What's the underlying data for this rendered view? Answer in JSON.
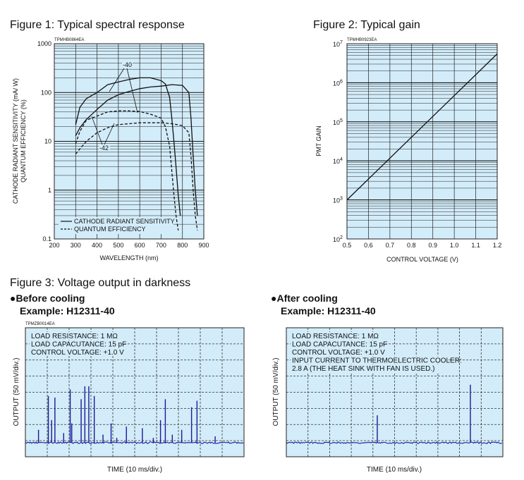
{
  "figures": {
    "fig1_title": "Figure 1: Typical spectral response",
    "fig2_title": "Figure 2: Typical gain",
    "fig3_title": "Figure 3: Voltage output in darkness"
  },
  "chart_data": [
    {
      "id": "fig1",
      "type": "line",
      "title": "Figure 1: Typical spectral response",
      "code": "TPMHB0864EA",
      "xlabel": "WAVELENGTH (nm)",
      "ylabel_line1": "CATHODE RADIANT SENSITIVITY (mA/ W)",
      "ylabel_line2": "QUANTUM EFFICIENCY (%)",
      "xlim": [
        200,
        900
      ],
      "ylim": [
        0.1,
        1000
      ],
      "yscale": "log",
      "grid": true,
      "x_ticks": [
        "200",
        "300",
        "400",
        "500",
        "600",
        "700",
        "800",
        "900"
      ],
      "y_ticks": [
        "0.1",
        "1",
        "10",
        "100",
        "1000"
      ],
      "legend": {
        "placement": "bottom-left",
        "entries": [
          {
            "label": "CATHODE RADIANT SENSITIVITY",
            "style": "solid"
          },
          {
            "label": "QUANTUM EFFICIENCY",
            "style": "dashed"
          }
        ]
      },
      "annotations": [
        "-40",
        "-42"
      ],
      "series": [
        {
          "style": "solid",
          "x": [
            300,
            320,
            350,
            400,
            450,
            500,
            550,
            600,
            650,
            700,
            720,
            740,
            750,
            760,
            770,
            780,
            790
          ],
          "y": [
            22,
            50,
            75,
            100,
            145,
            165,
            185,
            200,
            200,
            175,
            150,
            80,
            30,
            10,
            3,
            0.8,
            0.3
          ]
        },
        {
          "style": "solid",
          "x": [
            300,
            320,
            350,
            400,
            450,
            500,
            550,
            600,
            650,
            700,
            750,
            800,
            830,
            840,
            850,
            860,
            870
          ],
          "y": [
            13,
            19,
            28,
            45,
            70,
            90,
            105,
            120,
            130,
            135,
            145,
            140,
            100,
            30,
            5,
            1,
            0.3
          ]
        },
        {
          "style": "dashed",
          "x": [
            300,
            320,
            350,
            400,
            450,
            500,
            550,
            600,
            650,
            700,
            720,
            740,
            750,
            760,
            770,
            780
          ],
          "y": [
            9,
            16,
            27,
            33,
            40,
            42,
            42,
            41,
            36,
            30,
            20,
            8,
            2.5,
            0.8,
            0.3,
            0.15
          ]
        },
        {
          "style": "dashed",
          "x": [
            300,
            320,
            350,
            400,
            450,
            500,
            550,
            600,
            650,
            700,
            750,
            800,
            830,
            840,
            850,
            860,
            870
          ],
          "y": [
            5.5,
            7,
            10,
            15,
            19,
            22,
            23,
            24,
            24,
            24,
            23,
            21,
            15,
            5,
            1,
            0.3,
            0.15
          ]
        }
      ]
    },
    {
      "id": "fig2",
      "type": "line",
      "title": "Figure 2: Typical gain",
      "code": "TPMHB0923EA",
      "xlabel": "CONTROL VOLTAGE (V)",
      "ylabel": "PMT GAIN",
      "xlim": [
        0.5,
        1.2
      ],
      "ylim": [
        100,
        10000000
      ],
      "yscale": "log",
      "grid": true,
      "x_ticks": [
        "0.5",
        "0.6",
        "0.7",
        "0.8",
        "0.9",
        "1.0",
        "1.1",
        "1.2"
      ],
      "y_ticks": [
        {
          "base": "10",
          "exp": "2"
        },
        {
          "base": "10",
          "exp": "3"
        },
        {
          "base": "10",
          "exp": "4"
        },
        {
          "base": "10",
          "exp": "5"
        },
        {
          "base": "10",
          "exp": "6"
        },
        {
          "base": "10",
          "exp": "7"
        }
      ],
      "series": [
        {
          "x": [
            0.5,
            1.2
          ],
          "y": [
            1000,
            5500000
          ]
        }
      ]
    },
    {
      "id": "fig3a",
      "type": "line",
      "heading": "●Before cooling",
      "example": "Example: H12311-40",
      "code": "TPMZB0014EA",
      "xlabel": "TIME (10 ms/div.)",
      "ylabel": "OUTPUT (50 mV/div.)",
      "notes": [
        "LOAD RESISTANCE: 1 MΩ",
        "LOAD CAPACUTANCE: 15 pF",
        "CONTROL VOLTAGE: +1.0 V"
      ],
      "spike_time_div": [
        0.6,
        1.05,
        1.2,
        1.35,
        1.75,
        2.05,
        2.12,
        2.55,
        2.72,
        2.9,
        3.15,
        3.55,
        3.92,
        4.18,
        4.62,
        5.35,
        5.85,
        6.18,
        6.4,
        6.72,
        7.15,
        7.6,
        7.85,
        8.68
      ],
      "spike_height_div": [
        0.8,
        2.9,
        1.4,
        2.8,
        0.6,
        3.3,
        1.2,
        2.7,
        3.5,
        3.5,
        2.9,
        0.5,
        1.2,
        0.3,
        1.0,
        0.9,
        0.3,
        1.4,
        2.7,
        0.5,
        0.8,
        2.2,
        2.6,
        0.4
      ]
    },
    {
      "id": "fig3b",
      "type": "line",
      "heading": "●After cooling",
      "example": "Example: H12311-40",
      "xlabel": "TIME (10 ms/div.)",
      "ylabel": "OUTPUT (50 mV/div.)",
      "notes": [
        "LOAD RESISTANCE: 1 MΩ",
        "LOAD CAPACUTANCE: 15 pF",
        "CONTROL VOLTAGE: +1.0 V",
        "INPUT CURRENT TO THERMOELECTRIC COOLER:",
        "2.8 A (THE HEAT SINK WITH FAN IS USED.)"
      ],
      "spike_time_div": [
        4.2,
        8.5
      ],
      "spike_height_div": [
        1.7,
        3.6
      ]
    }
  ]
}
